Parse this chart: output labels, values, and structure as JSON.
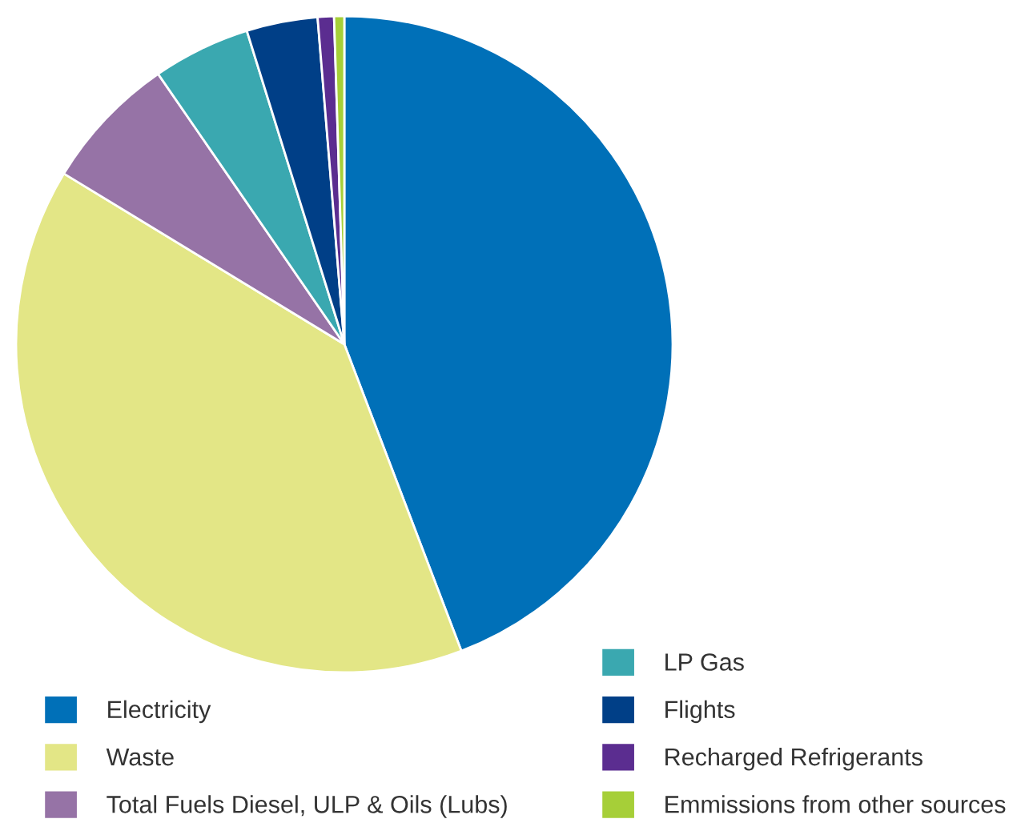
{
  "chart_data": {
    "type": "pie",
    "categories": [
      "Electricity",
      "Waste",
      "Total Fuels Diesel, ULP & Oils (Lubs)",
      "LP Gas",
      "Flights",
      "Recharged Refrigerants",
      "Emmissions from other sources"
    ],
    "values": [
      44.2,
      39.5,
      6.7,
      4.8,
      3.5,
      0.8,
      0.5
    ],
    "colors": [
      "#0070b8",
      "#e3e686",
      "#9673a6",
      "#3aa8b0",
      "#003f87",
      "#5b2d90",
      "#a6cf38"
    ],
    "legend": "bottom"
  }
}
